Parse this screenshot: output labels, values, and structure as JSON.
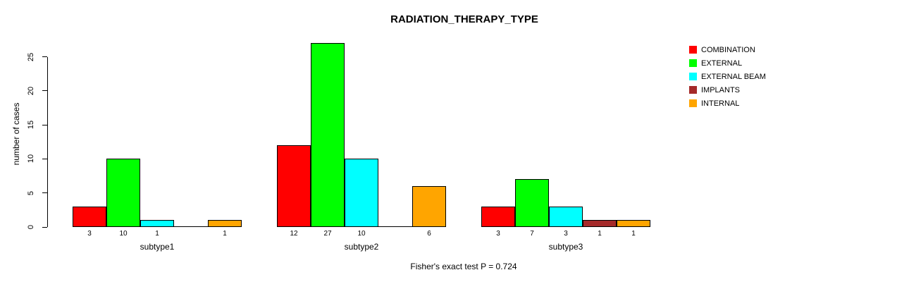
{
  "title": "RADIATION_THERAPY_TYPE",
  "footer": "Fisher's exact test P = 0.724",
  "chart_data": {
    "type": "bar",
    "grouped": true,
    "title": "RADIATION_THERAPY_TYPE",
    "xlabel": "",
    "ylabel": "number of cases",
    "ylim": [
      0,
      27
    ],
    "yticks": [
      0,
      5,
      10,
      15,
      20,
      25
    ],
    "grid": false,
    "legend_position": "right",
    "bar_value_labels_shown": true,
    "categories": [
      "subtype1",
      "subtype2",
      "subtype3"
    ],
    "series": [
      {
        "name": "COMBINATION",
        "color": "#FF0000",
        "values": [
          3,
          12,
          3
        ]
      },
      {
        "name": "EXTERNAL",
        "color": "#00FF00",
        "values": [
          10,
          27,
          7
        ]
      },
      {
        "name": "EXTERNAL BEAM",
        "color": "#00FFFF",
        "values": [
          1,
          10,
          3
        ]
      },
      {
        "name": "IMPLANTS",
        "color": "#A52A2A",
        "values": [
          0,
          0,
          1
        ]
      },
      {
        "name": "INTERNAL",
        "color": "#FFA500",
        "values": [
          1,
          6,
          1
        ]
      }
    ],
    "annotation": "Fisher's exact test P = 0.724"
  },
  "colors": {
    "axis": "#000000",
    "background": "#FFFFFF"
  }
}
